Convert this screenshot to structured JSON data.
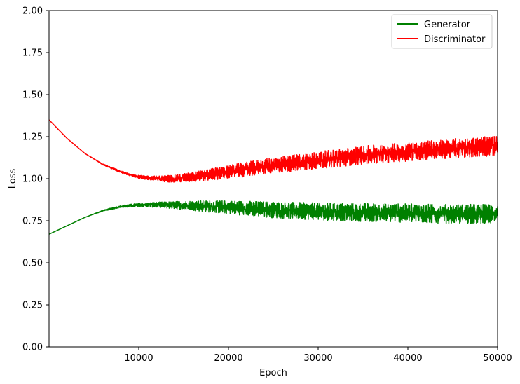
{
  "chart_data": {
    "type": "line",
    "xlabel": "Epoch",
    "ylabel": "Loss",
    "xlim": [
      0,
      50000
    ],
    "ylim": [
      0,
      2.0
    ],
    "x_ticks": [
      10000,
      20000,
      30000,
      40000,
      50000
    ],
    "x_tick_labels": [
      "10000",
      "20000",
      "30000",
      "40000",
      "50000"
    ],
    "y_ticks": [
      0,
      0.25,
      0.5,
      0.75,
      1.0,
      1.25,
      1.5,
      1.75,
      2.0
    ],
    "y_tick_labels": [
      "0.00",
      "0.25",
      "0.50",
      "0.75",
      "1.00",
      "1.25",
      "1.50",
      "1.75",
      "2.00"
    ],
    "grid": false,
    "legend_position": "top-right",
    "series": [
      {
        "name": "Generator",
        "color": "#008000",
        "x": [
          0,
          2000,
          4000,
          6000,
          8000,
          10000,
          12000,
          14000,
          16000,
          18000,
          20000,
          25000,
          30000,
          35000,
          40000,
          45000,
          50000
        ],
        "values": [
          0.67,
          0.72,
          0.77,
          0.81,
          0.835,
          0.845,
          0.845,
          0.843,
          0.84,
          0.835,
          0.83,
          0.815,
          0.805,
          0.8,
          0.795,
          0.79,
          0.79
        ],
        "noise": [
          0,
          0,
          0,
          0.002,
          0.004,
          0.006,
          0.01,
          0.014,
          0.018,
          0.022,
          0.025,
          0.03,
          0.032,
          0.034,
          0.035,
          0.036,
          0.037
        ]
      },
      {
        "name": "Discriminator",
        "color": "#ff0000",
        "x": [
          0,
          2000,
          4000,
          6000,
          8000,
          10000,
          12000,
          14000,
          16000,
          18000,
          20000,
          25000,
          30000,
          35000,
          40000,
          45000,
          50000
        ],
        "values": [
          1.35,
          1.24,
          1.15,
          1.085,
          1.04,
          1.01,
          1.0,
          1.0,
          1.01,
          1.025,
          1.04,
          1.08,
          1.11,
          1.14,
          1.16,
          1.18,
          1.195
        ],
        "noise": [
          0,
          0,
          0,
          0.002,
          0.004,
          0.006,
          0.01,
          0.014,
          0.018,
          0.022,
          0.025,
          0.03,
          0.032,
          0.034,
          0.035,
          0.036,
          0.037
        ]
      }
    ]
  }
}
